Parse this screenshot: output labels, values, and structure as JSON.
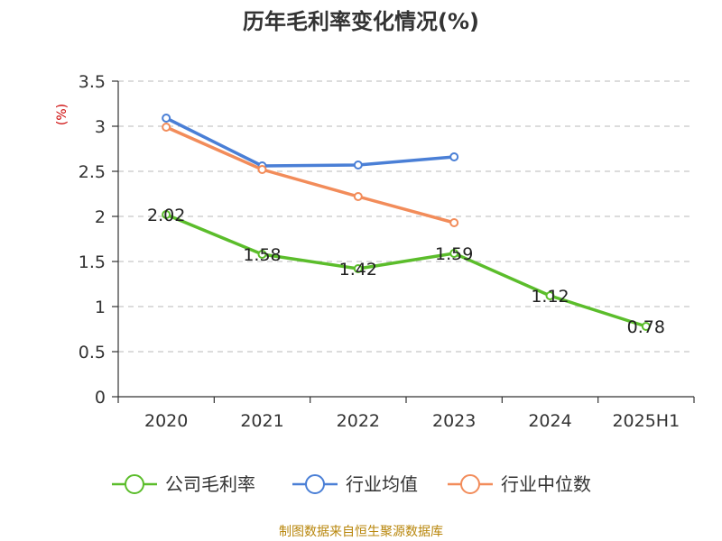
{
  "chart_data": {
    "type": "line",
    "title": "历年毛利率变化情况(%)",
    "ylabel": "(%)",
    "xlabel": "",
    "categories": [
      "2020",
      "2021",
      "2022",
      "2023",
      "2024",
      "2025H1"
    ],
    "ylim": [
      0,
      3.5
    ],
    "yticks": [
      "0",
      "0.5",
      "1",
      "1.5",
      "2",
      "2.5",
      "3",
      "3.5"
    ],
    "grid": "horizontal dashed",
    "legend_position": "bottom",
    "series": [
      {
        "name": "公司毛利率",
        "color": "#5bbd2b",
        "values": [
          2.02,
          1.58,
          1.42,
          1.59,
          1.12,
          0.78
        ],
        "labels": [
          "2.02",
          "1.58",
          "1.42",
          "1.59",
          "1.12",
          "0.78"
        ]
      },
      {
        "name": "行业均值",
        "color": "#4a7fd6",
        "values": [
          3.09,
          2.56,
          2.57,
          2.66,
          null,
          null
        ]
      },
      {
        "name": "行业中位数",
        "color": "#f28c5a",
        "values": [
          2.99,
          2.52,
          2.22,
          1.93,
          null,
          null
        ]
      }
    ]
  },
  "footer": {
    "source": "制图数据来自恒生聚源数据库"
  }
}
